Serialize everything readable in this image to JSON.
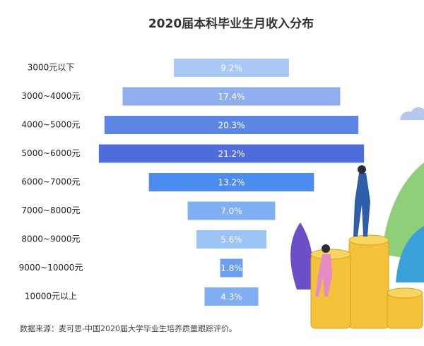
{
  "chart_data": {
    "type": "bar",
    "orientation": "horizontal-centered",
    "title": "2020届本科毕业生月收入分布",
    "categories": [
      "3000元以下",
      "3000~4000元",
      "4000~5000元",
      "5000~6000元",
      "6000~7000元",
      "7000~8000元",
      "8000~9000元",
      "9000~10000元",
      "10000元以上"
    ],
    "values": [
      9.2,
      17.4,
      20.3,
      21.2,
      13.2,
      7.0,
      5.6,
      1.8,
      4.3
    ],
    "value_labels": [
      "9.2%",
      "17.4%",
      "20.3%",
      "21.2%",
      "13.2%",
      "7.0%",
      "5.6%",
      "1.8%",
      "4.3%"
    ],
    "colors": [
      "#a9c8f5",
      "#8eaef0",
      "#5b86e6",
      "#4f6cdd",
      "#4a8cf0",
      "#7fb0f3",
      "#9cc3f5",
      "#6d9ff0",
      "#7faef3"
    ],
    "source": "数据来源：麦可思-中国2020届大学毕业生培养质量跟踪评价。"
  }
}
